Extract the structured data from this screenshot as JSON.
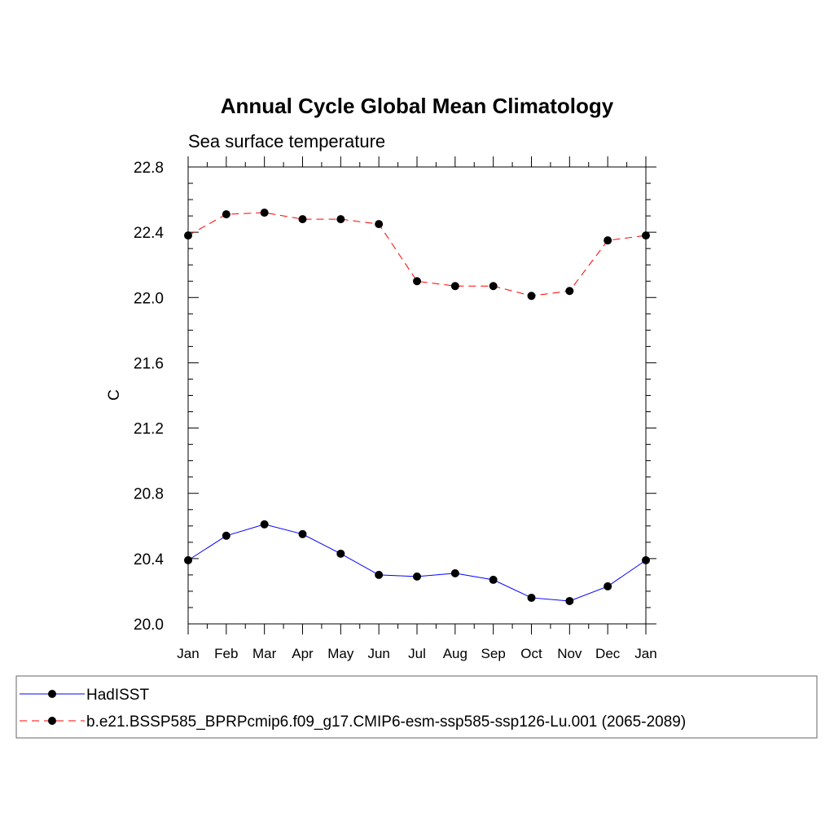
{
  "chart_data": {
    "type": "line",
    "title": "Annual Cycle Global Mean Climatology",
    "subtitle": "Sea surface temperature",
    "xlabel": "",
    "ylabel": "C",
    "categories": [
      "Jan",
      "Feb",
      "Mar",
      "Apr",
      "May",
      "Jun",
      "Jul",
      "Aug",
      "Sep",
      "Oct",
      "Nov",
      "Dec",
      "Jan"
    ],
    "ylim": [
      20.0,
      22.8
    ],
    "yticks": [
      "20.0",
      "20.4",
      "20.8",
      "21.2",
      "21.6",
      "22.0",
      "22.4",
      "22.8"
    ],
    "grid": false,
    "legend_position": "bottom",
    "series": [
      {
        "name": "HadISST",
        "color": "#0000ff",
        "dash": "solid",
        "values": [
          20.39,
          20.54,
          20.61,
          20.55,
          20.43,
          20.3,
          20.29,
          20.31,
          20.27,
          20.16,
          20.14,
          20.23,
          20.39
        ]
      },
      {
        "name": "b.e21.BSSP585_BPRPcmip6.f09_g17.CMIP6-esm-ssp585-ssp126-Lu.001 (2065-2089)",
        "color": "#ff0000",
        "dash": "dashed",
        "values": [
          22.38,
          22.51,
          22.52,
          22.48,
          22.48,
          22.45,
          22.1,
          22.07,
          22.07,
          22.01,
          22.04,
          22.35,
          22.38
        ]
      }
    ]
  }
}
